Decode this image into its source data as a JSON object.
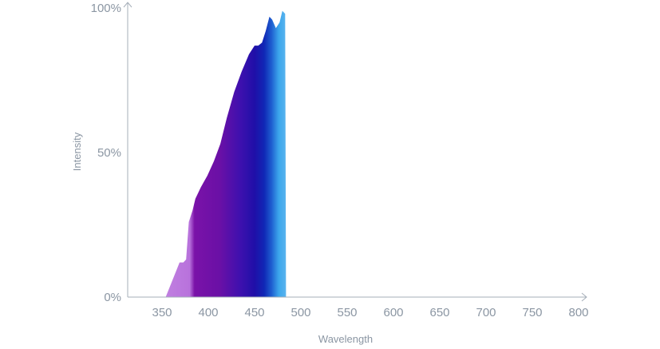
{
  "chart_data": {
    "type": "area",
    "xlabel": "Wavelength",
    "ylabel": "Intensity",
    "xlim": [
      320,
      800
    ],
    "ylim": [
      0,
      100
    ],
    "x_ticks": [
      350,
      400,
      450,
      500,
      550,
      600,
      650,
      700,
      750,
      800
    ],
    "y_ticks": [
      {
        "value": 0,
        "label": "0%"
      },
      {
        "value": 50,
        "label": "50%"
      },
      {
        "value": 100,
        "label": "100%"
      }
    ],
    "grid": false,
    "series": [
      {
        "x": [
          354,
          369,
          373,
          376,
          379,
          383,
          386,
          392,
          399,
          406,
          413,
          420,
          428,
          436,
          444,
          450,
          454,
          458,
          462,
          466,
          469,
          473,
          477,
          480,
          483,
          484
        ],
        "y": [
          0,
          12,
          12,
          13,
          26,
          30,
          34,
          38,
          42,
          47,
          53,
          62,
          71,
          78,
          84,
          87,
          87,
          88,
          92,
          97,
          96,
          93,
          95,
          99,
          98,
          0
        ]
      }
    ],
    "colors": {
      "axis": "#a6afb9",
      "text": "#8b96a3",
      "gradient": [
        "#c07fe0",
        "#b872dc",
        "#7a12a8",
        "#6a10a6",
        "#3e10ae",
        "#1f0fa8",
        "#1028b6",
        "#1e5fd0",
        "#3ca6ec",
        "#5ab4ee"
      ]
    }
  }
}
